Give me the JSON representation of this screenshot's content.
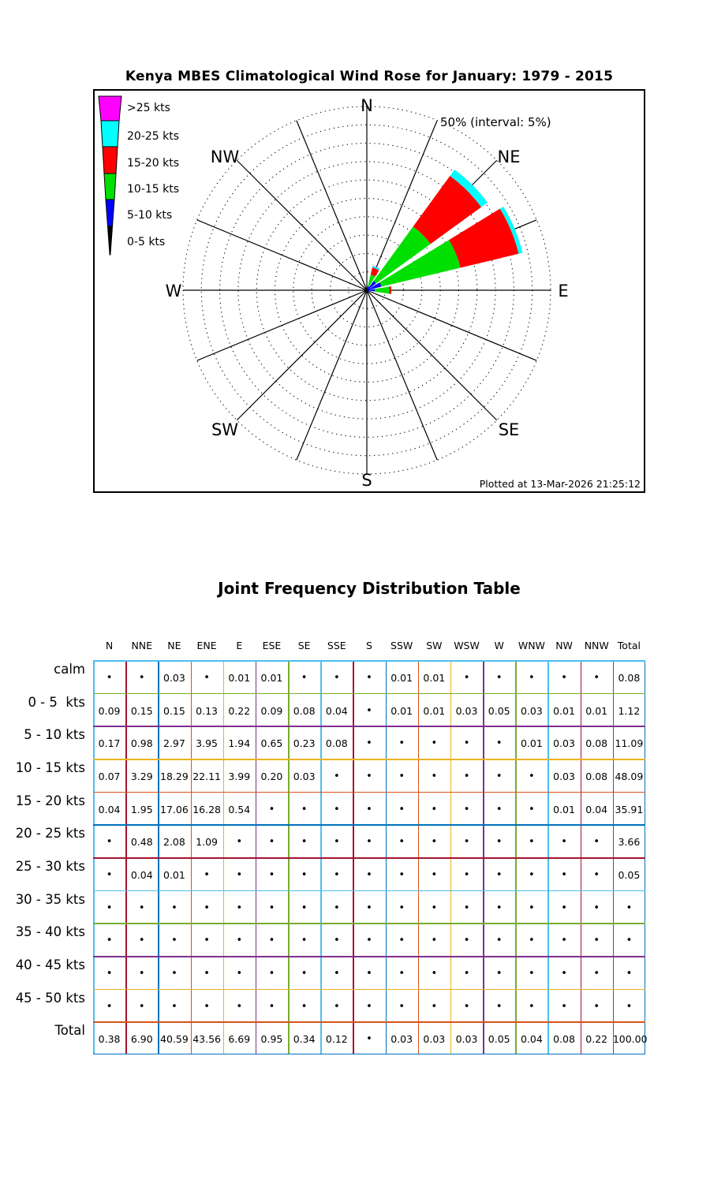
{
  "rose": {
    "title": "Kenya MBES Climatological Wind Rose for January: 1979 - 2015",
    "scale_label": "50% (interval: 5%)",
    "plotted_at": "Plotted at 13-Mar-2026 21:25:12",
    "compass_labels": [
      "N",
      "NE",
      "E",
      "SE",
      "S",
      "SW",
      "W",
      "NW"
    ],
    "legend": [
      {
        "label": ">25 kts",
        "color": "#ff00ff"
      },
      {
        "label": "20-25 kts",
        "color": "#00ffff"
      },
      {
        "label": "15-20 kts",
        "color": "#ff0000"
      },
      {
        "label": "10-15 kts",
        "color": "#00e000"
      },
      {
        "label": "5-10 kts",
        "color": "#0000ff"
      },
      {
        "label": "0-5 kts",
        "color": "#000000"
      }
    ]
  },
  "chart_data": {
    "type": "wind_rose",
    "title": "Kenya MBES Climatological Wind Rose for January: 1979 - 2015",
    "units": "percent frequency of occurrence",
    "scale": {
      "max_pct": 50,
      "ring_interval_pct": 5,
      "rings": 10
    },
    "directions": [
      "N",
      "NNE",
      "NE",
      "ENE",
      "E",
      "ESE",
      "SE",
      "SSE",
      "S",
      "SSW",
      "SW",
      "WSW",
      "W",
      "WNW",
      "NW",
      "NNW"
    ],
    "calm_pct": 0.08,
    "series": [
      {
        "bin": "0-5 kts",
        "color": "#000000",
        "values": [
          0.09,
          0.15,
          0.15,
          0.13,
          0.22,
          0.09,
          0.08,
          0.04,
          0,
          0.01,
          0.01,
          0.03,
          0.05,
          0.03,
          0.01,
          0.01
        ]
      },
      {
        "bin": "5-10 kts",
        "color": "#0000ff",
        "values": [
          0.17,
          0.98,
          2.97,
          3.95,
          1.94,
          0.65,
          0.23,
          0.08,
          0,
          0,
          0,
          0,
          0,
          0.01,
          0.03,
          0.08
        ]
      },
      {
        "bin": "10-15 kts",
        "color": "#00e000",
        "values": [
          0.07,
          3.29,
          18.29,
          22.11,
          3.99,
          0.2,
          0.03,
          0,
          0,
          0,
          0,
          0,
          0,
          0,
          0.03,
          0.08
        ]
      },
      {
        "bin": "15-20 kts",
        "color": "#ff0000",
        "values": [
          0.04,
          1.95,
          17.06,
          16.28,
          0.54,
          0,
          0,
          0,
          0,
          0,
          0,
          0,
          0,
          0,
          0.01,
          0.04
        ]
      },
      {
        "bin": "20-25 kts",
        "color": "#00ffff",
        "values": [
          0,
          0.48,
          2.08,
          1.09,
          0,
          0,
          0,
          0,
          0,
          0,
          0,
          0,
          0,
          0,
          0,
          0
        ]
      },
      {
        "bin": ">25 kts",
        "color": "#ff00ff",
        "values": [
          0,
          0.04,
          0.01,
          0,
          0,
          0,
          0,
          0,
          0,
          0,
          0,
          0,
          0,
          0,
          0,
          0
        ]
      }
    ],
    "direction_totals": [
      0.38,
      6.9,
      40.59,
      43.56,
      6.69,
      0.95,
      0.34,
      0.12,
      0,
      0.03,
      0.03,
      0.03,
      0.05,
      0.04,
      0.08,
      0.22
    ],
    "grand_total": 100.0
  },
  "table": {
    "title": "Joint Frequency Distribution Table",
    "col_headers": [
      "N",
      "NNE",
      "NE",
      "ENE",
      "E",
      "ESE",
      "SE",
      "SSE",
      "S",
      "SSW",
      "SW",
      "WSW",
      "W",
      "WNW",
      "NW",
      "NNW",
      "Total"
    ],
    "rows": [
      {
        "label": "calm",
        "cells": [
          "•",
          "•",
          "0.03",
          "•",
          "0.01",
          "0.01",
          "•",
          "•",
          "•",
          "0.01",
          "0.01",
          "•",
          "•",
          "•",
          "•",
          "•",
          "0.08"
        ]
      },
      {
        "label": "0 - 5  kts",
        "cells": [
          "0.09",
          "0.15",
          "0.15",
          "0.13",
          "0.22",
          "0.09",
          "0.08",
          "0.04",
          "•",
          "0.01",
          "0.01",
          "0.03",
          "0.05",
          "0.03",
          "0.01",
          "0.01",
          "1.12"
        ]
      },
      {
        "label": "5 - 10 kts",
        "cells": [
          "0.17",
          "0.98",
          "2.97",
          "3.95",
          "1.94",
          "0.65",
          "0.23",
          "0.08",
          "•",
          "•",
          "•",
          "•",
          "•",
          "0.01",
          "0.03",
          "0.08",
          "11.09"
        ]
      },
      {
        "label": "10 - 15 kts",
        "cells": [
          "0.07",
          "3.29",
          "18.29",
          "22.11",
          "3.99",
          "0.20",
          "0.03",
          "•",
          "•",
          "•",
          "•",
          "•",
          "•",
          "•",
          "0.03",
          "0.08",
          "48.09"
        ]
      },
      {
        "label": "15 - 20 kts",
        "cells": [
          "0.04",
          "1.95",
          "17.06",
          "16.28",
          "0.54",
          "•",
          "•",
          "•",
          "•",
          "•",
          "•",
          "•",
          "•",
          "•",
          "0.01",
          "0.04",
          "35.91"
        ]
      },
      {
        "label": "20 - 25 kts",
        "cells": [
          "•",
          "0.48",
          "2.08",
          "1.09",
          "•",
          "•",
          "•",
          "•",
          "•",
          "•",
          "•",
          "•",
          "•",
          "•",
          "•",
          "•",
          "3.66"
        ]
      },
      {
        "label": "25 - 30 kts",
        "cells": [
          "•",
          "0.04",
          "0.01",
          "•",
          "•",
          "•",
          "•",
          "•",
          "•",
          "•",
          "•",
          "•",
          "•",
          "•",
          "•",
          "•",
          "0.05"
        ]
      },
      {
        "label": "30 - 35 kts",
        "cells": [
          "•",
          "•",
          "•",
          "•",
          "•",
          "•",
          "•",
          "•",
          "•",
          "•",
          "•",
          "•",
          "•",
          "•",
          "•",
          "•",
          "•"
        ]
      },
      {
        "label": "35 - 40 kts",
        "cells": [
          "•",
          "•",
          "•",
          "•",
          "•",
          "•",
          "•",
          "•",
          "•",
          "•",
          "•",
          "•",
          "•",
          "•",
          "•",
          "•",
          "•"
        ]
      },
      {
        "label": "40 - 45 kts",
        "cells": [
          "•",
          "•",
          "•",
          "•",
          "•",
          "•",
          "•",
          "•",
          "•",
          "•",
          "•",
          "•",
          "•",
          "•",
          "•",
          "•",
          "•"
        ]
      },
      {
        "label": "45 - 50 kts",
        "cells": [
          "•",
          "•",
          "•",
          "•",
          "•",
          "•",
          "•",
          "•",
          "•",
          "•",
          "•",
          "•",
          "•",
          "•",
          "•",
          "•",
          "•"
        ]
      },
      {
        "label": "Total",
        "cells": [
          "0.38",
          "6.90",
          "40.59",
          "43.56",
          "6.69",
          "0.95",
          "0.34",
          "0.12",
          "•",
          "0.03",
          "0.03",
          "0.03",
          "0.05",
          "0.04",
          "0.08",
          "0.22",
          "100.00"
        ]
      }
    ],
    "grid": {
      "v_colors": [
        "#4DBEEE",
        "#A2142F",
        "#0072BD",
        "#D95319",
        "#EDB120",
        "#7E2F8E",
        "#77AC30",
        "#4DBEEE",
        "#A2142F",
        "#0072BD",
        "#D95319",
        "#EDB120",
        "#7E2F8E",
        "#77AC30",
        "#4DBEEE",
        "#A2142F",
        "#0072BD",
        "#0072BD"
      ],
      "h_colors": [
        "#4DBEEE",
        "#77AC30",
        "#7E2F8E",
        "#EDB120",
        "#D95319",
        "#0072BD",
        "#A2142F",
        "#4DBEEE",
        "#77AC30",
        "#7E2F8E",
        "#EDB120",
        "#D95319",
        "#0072BD"
      ]
    }
  }
}
